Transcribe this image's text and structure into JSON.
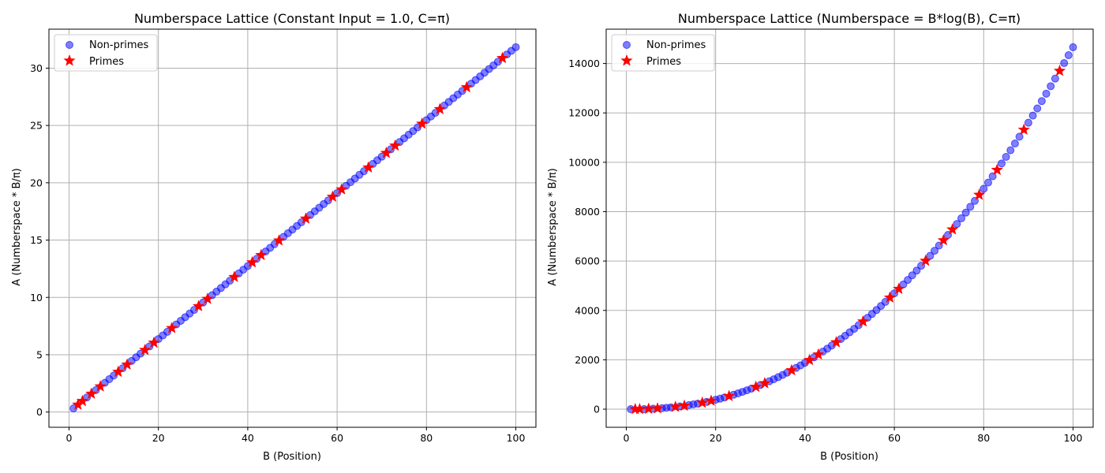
{
  "chart_data": [
    {
      "type": "scatter",
      "title": "Numberspace Lattice (Constant Input = 1.0, C=π)",
      "xlabel": "B (Position)",
      "ylabel": "A (Numberspace * B/π)",
      "xlim": [
        -4.5,
        104.5
      ],
      "ylim": [
        -1.33,
        33.4
      ],
      "xticks": [
        0,
        20,
        40,
        60,
        80,
        100
      ],
      "yticks": [
        0,
        5,
        10,
        15,
        20,
        25,
        30
      ],
      "grid": true,
      "legend": "top-left",
      "x_range": [
        1,
        100
      ],
      "y_formula": "B/pi",
      "series": [
        {
          "name": "Non-primes",
          "marker": "circle",
          "color": "#0000ff"
        },
        {
          "name": "Primes",
          "marker": "star",
          "color": "#ff0000"
        }
      ]
    },
    {
      "type": "scatter",
      "title": "Numberspace Lattice (Numberspace = B*log(B), C=π)",
      "xlabel": "B (Position)",
      "ylabel": "A (Numberspace * B/π)",
      "xlim": [
        -4.5,
        104.5
      ],
      "ylim": [
        -733,
        15391
      ],
      "xticks": [
        0,
        20,
        40,
        60,
        80,
        100
      ],
      "yticks": [
        0,
        2000,
        4000,
        6000,
        8000,
        10000,
        12000,
        14000
      ],
      "grid": true,
      "legend": "top-left",
      "x_range": [
        1,
        100
      ],
      "y_formula": "B*log(B)*B/pi",
      "series": [
        {
          "name": "Non-primes",
          "marker": "circle",
          "color": "#0000ff"
        },
        {
          "name": "Primes",
          "marker": "star",
          "color": "#ff0000"
        }
      ]
    }
  ],
  "primes": [
    2,
    3,
    5,
    7,
    11,
    13,
    17,
    19,
    23,
    29,
    31,
    37,
    41,
    43,
    47,
    53,
    59,
    61,
    67,
    71,
    73,
    79,
    83,
    89,
    97
  ]
}
